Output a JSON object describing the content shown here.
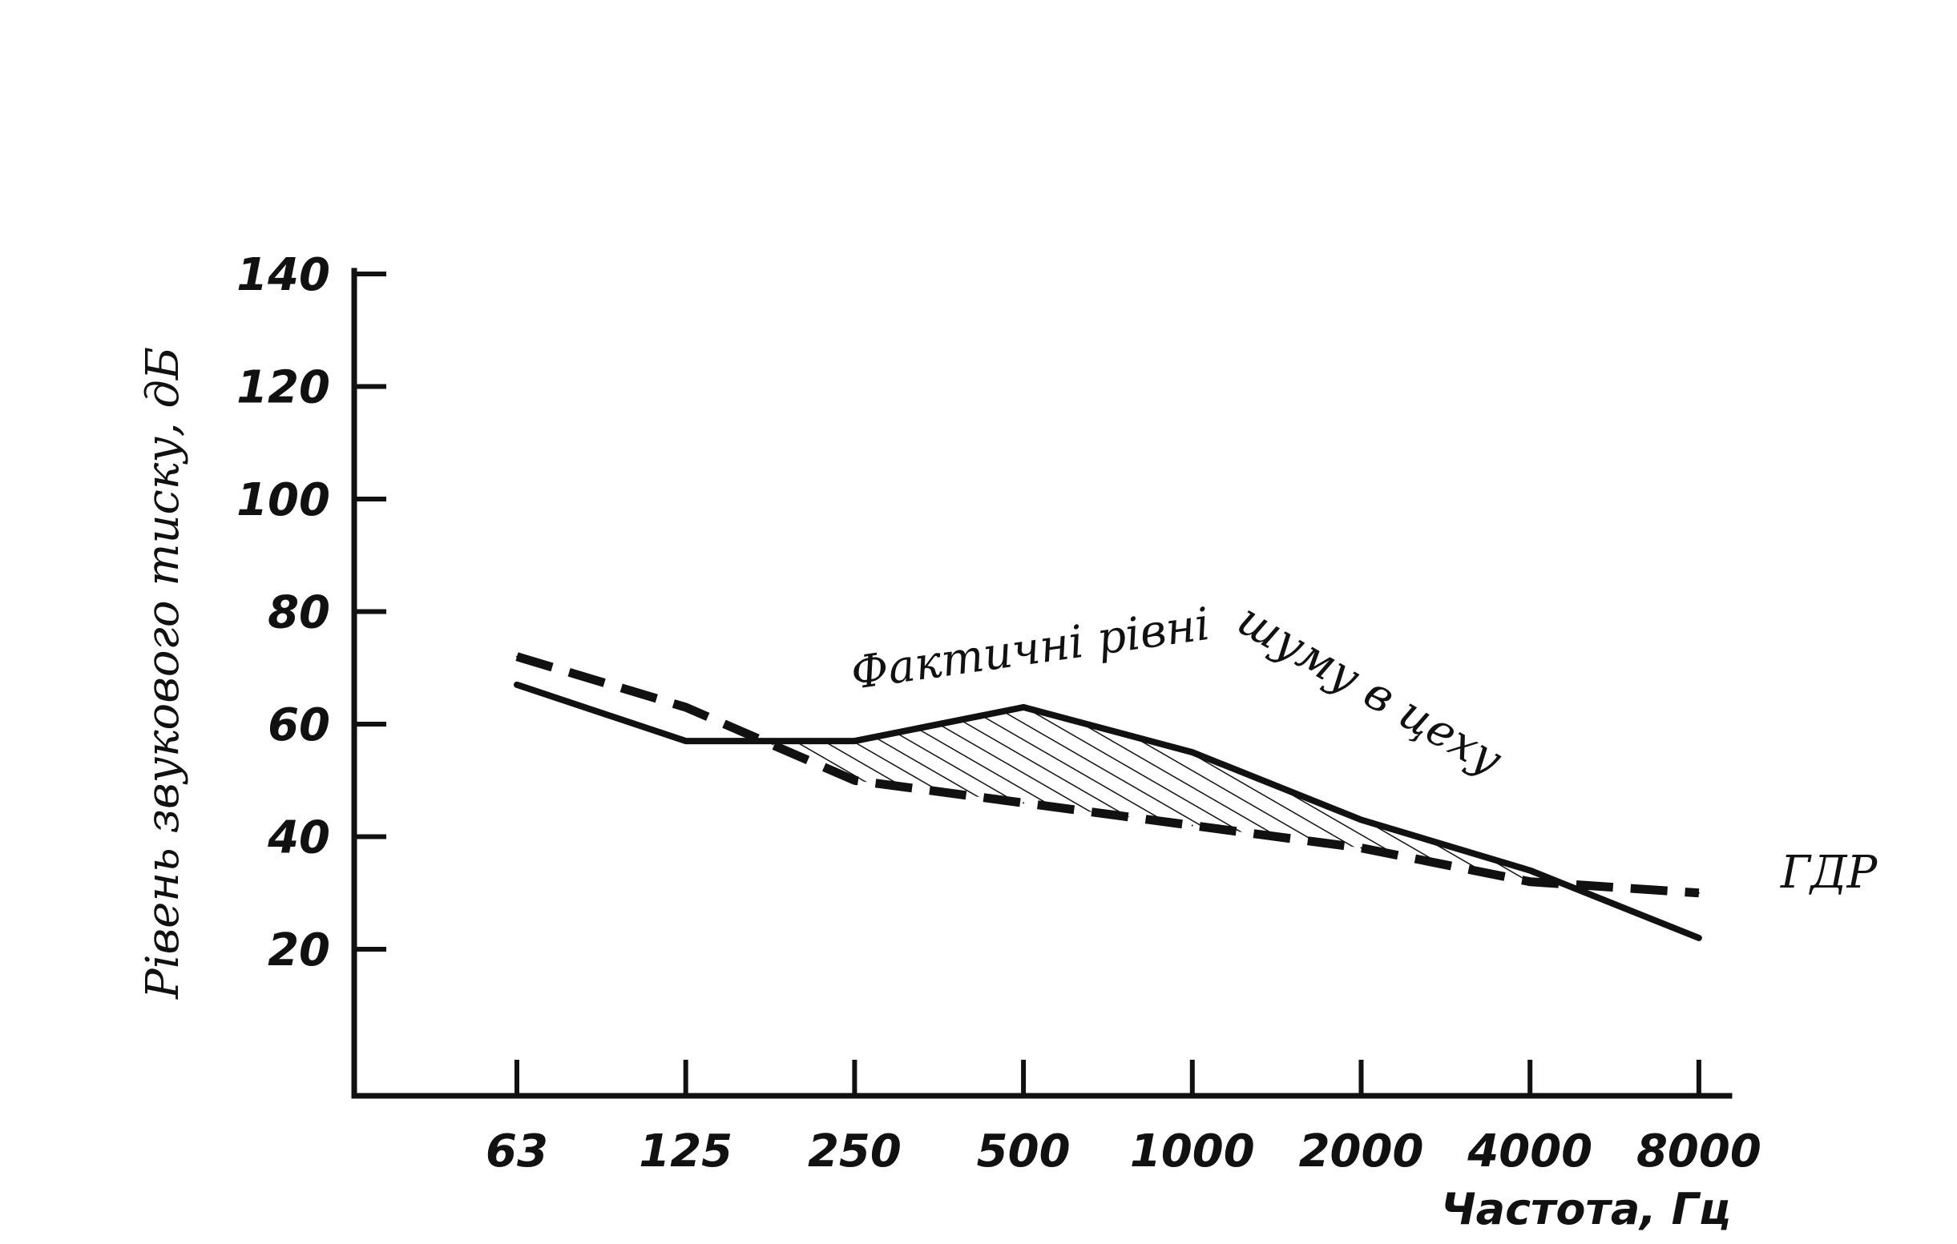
{
  "chart_data": {
    "type": "line",
    "xlabel": "Частота, Гц",
    "ylabel": "Рівень звукового тиску, дБ",
    "categories": [
      "63",
      "125",
      "250",
      "500",
      "1000",
      "2000",
      "4000",
      "8000"
    ],
    "yticks": [
      "140",
      "120",
      "100",
      "80",
      "60",
      "40",
      "20"
    ],
    "ytick_values": [
      140,
      120,
      100,
      80,
      60,
      40,
      20
    ],
    "ylim": [
      -25,
      140
    ],
    "series": [
      {
        "name": "Фактичні рівні шуму в цеху",
        "style": "solid",
        "values": [
          67,
          57,
          57,
          63,
          55,
          43,
          34,
          22
        ]
      },
      {
        "name": "ГДР",
        "style": "dashed",
        "values": [
          72,
          63,
          50,
          46,
          42,
          38,
          32,
          30
        ]
      }
    ],
    "shaded_region": "between actual and limit where actual exceeds limit (hatched)",
    "annotations": {
      "actual_part1": "Фактичні рівні",
      "actual_part2": "шуму в цеху",
      "limit": "ГДР"
    },
    "grid": false,
    "colors": {
      "ink": "#111111",
      "background": "#ffffff"
    }
  }
}
